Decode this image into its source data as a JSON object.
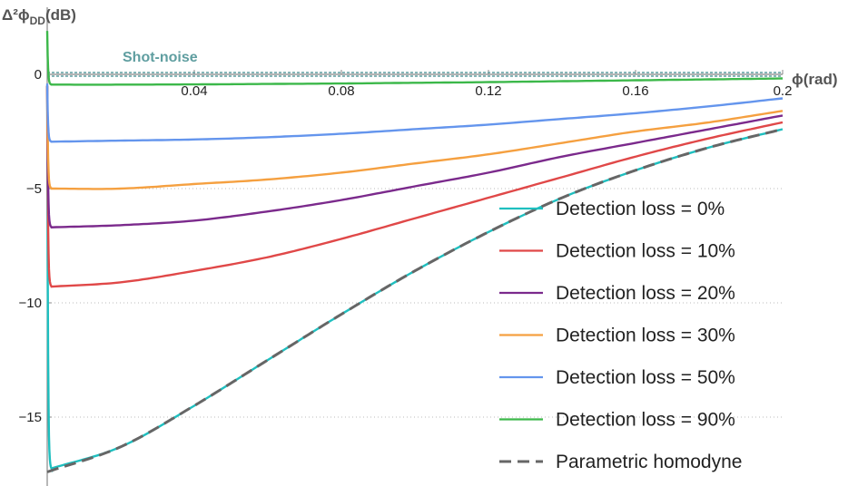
{
  "chart_data": {
    "type": "line",
    "title": "",
    "xlabel": "ϕ(rad)",
    "ylabel_main": "Δ²ϕ",
    "ylabel_sub": "DD",
    "ylabel_unit": "(dB)",
    "xlim": [
      0,
      0.2
    ],
    "ylim": [
      -17.8,
      1.9
    ],
    "x_ticks": [
      "0.04",
      "0.08",
      "0.12",
      "0.16",
      "0.2"
    ],
    "x_tick_values": [
      0.04,
      0.08,
      0.12,
      0.16,
      0.2
    ],
    "y_ticks": [
      "0",
      "−5",
      "−10",
      "−15"
    ],
    "y_tick_values": [
      0,
      -5,
      -10,
      -15
    ],
    "grid": "horizontal dotted at y ticks",
    "legend_position": "bottom-right",
    "annotation": "Shot-noise",
    "shot_noise_level": 0,
    "x": [
      0,
      0.02,
      0.04,
      0.06,
      0.08,
      0.1,
      0.12,
      0.14,
      0.16,
      0.18,
      0.2
    ],
    "series": [
      {
        "name": "Detection loss = 0%",
        "color": "#1fbfbf",
        "style": "solid",
        "start": -0.5,
        "min_near_zero": -17.3,
        "values": [
          -17.3,
          -16.3,
          -14.5,
          -12.5,
          -10.5,
          -8.6,
          -6.9,
          -5.4,
          -4.2,
          -3.2,
          -2.4
        ]
      },
      {
        "name": "Detection loss = 10%",
        "color": "#e04848",
        "style": "solid",
        "start": -0.5,
        "min_near_zero": -9.3,
        "values": [
          -9.3,
          -9.1,
          -8.6,
          -8.0,
          -7.2,
          -6.3,
          -5.4,
          -4.5,
          -3.6,
          -2.8,
          -2.1
        ]
      },
      {
        "name": "Detection loss = 20%",
        "color": "#7b2a8c",
        "style": "solid",
        "start": -0.5,
        "min_near_zero": -6.7,
        "values": [
          -6.7,
          -6.6,
          -6.4,
          -6.0,
          -5.5,
          -4.9,
          -4.3,
          -3.6,
          -3.0,
          -2.4,
          -1.8
        ]
      },
      {
        "name": "Detection loss = 30%",
        "color": "#f5a040",
        "style": "solid",
        "start": -0.5,
        "min_near_zero": -5.0,
        "values": [
          -5.0,
          -5.0,
          -4.8,
          -4.6,
          -4.3,
          -3.9,
          -3.5,
          -3.0,
          -2.5,
          -2.1,
          -1.6
        ]
      },
      {
        "name": "Detection loss = 50%",
        "color": "#6495ed",
        "style": "solid",
        "start": -0.4,
        "min_near_zero": -2.95,
        "values": [
          -2.95,
          -2.9,
          -2.85,
          -2.75,
          -2.6,
          -2.4,
          -2.2,
          -1.95,
          -1.7,
          -1.4,
          -1.05
        ]
      },
      {
        "name": "Detection loss = 90%",
        "color": "#3cb84a",
        "style": "solid",
        "start": 1.9,
        "min_near_zero": -0.45,
        "values": [
          -0.45,
          -0.45,
          -0.44,
          -0.42,
          -0.4,
          -0.37,
          -0.34,
          -0.3,
          -0.26,
          -0.22,
          -0.18
        ]
      },
      {
        "name": "Parametric homodyne",
        "color": "#666666",
        "style": "dashed",
        "start": -17.4,
        "min_near_zero": -17.4,
        "values": [
          -17.4,
          -16.3,
          -14.5,
          -12.5,
          -10.5,
          -8.6,
          -6.9,
          -5.4,
          -4.2,
          -3.2,
          -2.4
        ]
      }
    ]
  }
}
